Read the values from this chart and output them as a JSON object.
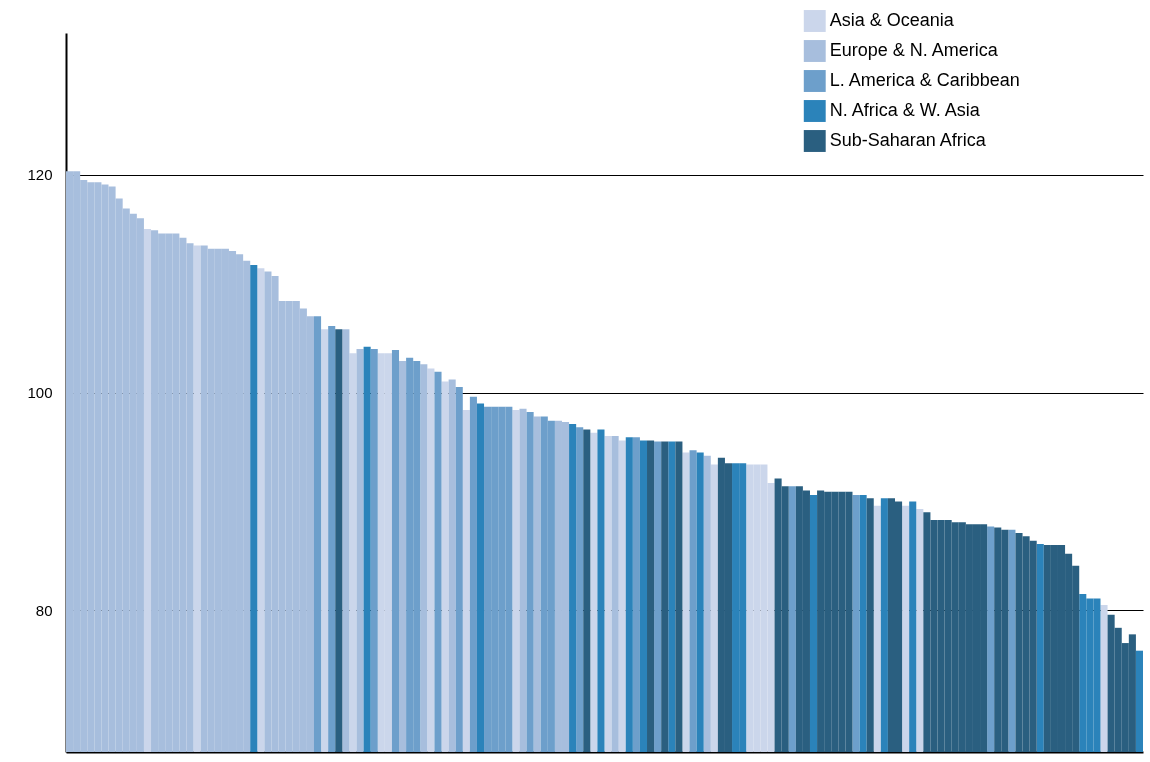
{
  "chart_data": {
    "type": "bar",
    "categories": [
      null,
      null,
      null,
      null,
      null,
      null,
      null,
      null,
      null,
      null,
      null,
      null,
      null,
      null,
      null,
      null,
      null,
      null,
      null,
      null,
      null,
      null,
      null,
      null,
      null,
      null,
      null,
      null,
      null,
      null,
      null,
      null,
      null,
      null,
      null,
      null,
      null,
      null,
      null,
      null,
      null,
      null,
      null,
      null,
      null,
      null,
      null,
      null,
      null,
      null,
      null,
      null,
      null,
      null,
      null,
      null,
      null,
      null,
      null,
      null,
      null,
      null,
      null,
      null,
      null,
      null,
      null,
      null,
      null,
      null,
      null,
      null,
      null,
      null,
      null,
      null,
      null,
      null,
      null,
      null,
      null,
      null,
      null,
      null,
      null,
      null,
      null,
      null,
      null,
      null,
      null,
      null,
      null,
      null,
      null,
      null,
      null,
      null,
      null,
      null,
      null,
      null,
      null,
      null,
      null,
      null,
      null,
      null,
      null,
      null,
      null,
      null,
      null,
      null,
      null,
      null,
      null,
      null,
      null,
      null,
      null,
      null,
      null,
      null,
      null,
      null,
      null,
      null,
      null,
      null,
      null,
      null,
      null,
      null,
      null,
      null,
      null,
      null,
      null,
      null,
      null,
      null,
      null,
      null,
      null,
      null,
      null,
      null,
      null,
      null,
      null,
      null
    ],
    "series": [
      {
        "name": "Asia & Oceania",
        "color": "#cbd6eb",
        "values": [
          null,
          null,
          null,
          null,
          null,
          null,
          null,
          null,
          null,
          null,
          null,
          115.0,
          null,
          null,
          null,
          null,
          null,
          null,
          113.5,
          null,
          null,
          null,
          null,
          null,
          null,
          null,
          null,
          111.4,
          null,
          null,
          null,
          null,
          null,
          null,
          null,
          null,
          105.8,
          null,
          null,
          null,
          103.6,
          null,
          null,
          null,
          103.6,
          103.6,
          null,
          null,
          null,
          null,
          null,
          102.2,
          null,
          101.0,
          null,
          null,
          98.4,
          null,
          null,
          null,
          null,
          null,
          null,
          98.4,
          null,
          null,
          null,
          null,
          null,
          null,
          null,
          null,
          null,
          null,
          96.3,
          null,
          96.0,
          null,
          95.6,
          null,
          null,
          null,
          null,
          null,
          null,
          null,
          null,
          94.5,
          null,
          null,
          null,
          93.4,
          null,
          null,
          null,
          null,
          93.4,
          93.4,
          93.4,
          91.7,
          null,
          null,
          null,
          null,
          null,
          null,
          null,
          null,
          null,
          null,
          null,
          null,
          null,
          null,
          89.6,
          null,
          null,
          null,
          89.6,
          null,
          89.3,
          null,
          null,
          null,
          null,
          null,
          null,
          null,
          null,
          null,
          null,
          null,
          null,
          null,
          null,
          null,
          null,
          null,
          null,
          null,
          null,
          null,
          null,
          null,
          null,
          null,
          80.5,
          null,
          null,
          null,
          null,
          null
        ]
      },
      {
        "name": "Europe & N. America",
        "color": "#a7bedd",
        "values": [
          120.3,
          120.3,
          119.5,
          119.3,
          119.3,
          119.1,
          118.9,
          117.8,
          116.9,
          116.4,
          116.0,
          null,
          114.9,
          114.6,
          114.6,
          114.6,
          114.2,
          113.7,
          null,
          113.5,
          113.2,
          113.2,
          113.2,
          113.0,
          112.7,
          112.1,
          null,
          null,
          111.1,
          110.7,
          108.4,
          108.4,
          108.4,
          107.7,
          107.0,
          null,
          null,
          null,
          null,
          105.8,
          null,
          104.0,
          null,
          null,
          null,
          null,
          null,
          102.9,
          null,
          null,
          102.6,
          null,
          null,
          null,
          101.2,
          null,
          null,
          null,
          null,
          null,
          null,
          null,
          null,
          null,
          98.5,
          null,
          97.8,
          null,
          null,
          97.4,
          97.3,
          null,
          null,
          null,
          null,
          null,
          null,
          96.0,
          null,
          null,
          null,
          null,
          null,
          null,
          null,
          null,
          null,
          null,
          null,
          null,
          94.2,
          null,
          null,
          null,
          null,
          null,
          null,
          null,
          null,
          null,
          null,
          null,
          null,
          null,
          null,
          null,
          null,
          null,
          null,
          null,
          null,
          null,
          null,
          null,
          null,
          null,
          null,
          null,
          null,
          null,
          null,
          null,
          null,
          null,
          null,
          null,
          null,
          null,
          null,
          null,
          null,
          null,
          null,
          null,
          null,
          null,
          null,
          null,
          null,
          null,
          null,
          null,
          null,
          null,
          null,
          null,
          null,
          null,
          null,
          null,
          null,
          null
        ]
      },
      {
        "name": "L. America & Caribbean",
        "color": "#6d9fcb",
        "values": [
          null,
          null,
          null,
          null,
          null,
          null,
          null,
          null,
          null,
          null,
          null,
          null,
          null,
          null,
          null,
          null,
          null,
          null,
          null,
          null,
          null,
          null,
          null,
          null,
          null,
          null,
          null,
          null,
          null,
          null,
          null,
          null,
          null,
          null,
          null,
          107.0,
          null,
          106.1,
          null,
          null,
          null,
          null,
          null,
          104.0,
          null,
          null,
          103.9,
          null,
          103.2,
          102.9,
          null,
          null,
          101.9,
          null,
          null,
          100.5,
          null,
          99.6,
          null,
          98.7,
          98.7,
          98.7,
          98.7,
          null,
          null,
          98.2,
          null,
          97.8,
          97.4,
          null,
          null,
          null,
          96.8,
          null,
          null,
          null,
          null,
          null,
          null,
          null,
          95.9,
          null,
          null,
          95.5,
          null,
          null,
          null,
          null,
          94.7,
          null,
          null,
          null,
          null,
          null,
          null,
          null,
          null,
          null,
          null,
          null,
          null,
          null,
          91.4,
          null,
          null,
          null,
          null,
          null,
          null,
          null,
          null,
          90.6,
          null,
          null,
          null,
          null,
          null,
          null,
          null,
          null,
          null,
          null,
          null,
          null,
          null,
          null,
          null,
          null,
          null,
          null,
          87.7,
          null,
          null,
          87.4,
          null,
          null,
          null,
          null,
          null,
          null,
          null,
          null,
          null,
          null,
          null,
          null,
          null,
          null,
          null,
          null,
          null,
          null
        ]
      },
      {
        "name": "N. Africa & W. Asia",
        "color": "#2b83ba",
        "values": [
          null,
          null,
          null,
          null,
          null,
          null,
          null,
          null,
          null,
          null,
          null,
          null,
          null,
          null,
          null,
          null,
          null,
          null,
          null,
          null,
          null,
          null,
          null,
          null,
          null,
          null,
          111.7,
          null,
          null,
          null,
          null,
          null,
          null,
          null,
          null,
          null,
          null,
          null,
          null,
          null,
          null,
          null,
          104.2,
          null,
          null,
          null,
          null,
          null,
          null,
          null,
          null,
          null,
          null,
          null,
          null,
          null,
          null,
          null,
          99.0,
          null,
          null,
          null,
          null,
          null,
          null,
          null,
          null,
          null,
          null,
          null,
          null,
          97.1,
          null,
          null,
          null,
          96.6,
          null,
          null,
          null,
          95.9,
          null,
          95.6,
          null,
          null,
          null,
          95.5,
          null,
          null,
          null,
          94.5,
          null,
          null,
          null,
          null,
          93.5,
          93.5,
          null,
          null,
          null,
          null,
          null,
          null,
          null,
          null,
          null,
          90.6,
          null,
          null,
          null,
          null,
          null,
          null,
          90.6,
          null,
          null,
          90.3,
          null,
          null,
          null,
          90.0,
          null,
          null,
          null,
          null,
          null,
          null,
          null,
          null,
          null,
          null,
          null,
          null,
          null,
          null,
          null,
          null,
          null,
          86.1,
          null,
          null,
          null,
          null,
          null,
          81.5,
          81.1,
          81.1,
          null,
          null,
          null,
          null,
          null,
          76.3
        ]
      },
      {
        "name": "Sub-Saharan Africa",
        "color": "#2a5f80",
        "values": [
          null,
          null,
          null,
          null,
          null,
          null,
          null,
          null,
          null,
          null,
          null,
          null,
          null,
          null,
          null,
          null,
          null,
          null,
          null,
          null,
          null,
          null,
          null,
          null,
          null,
          null,
          null,
          null,
          null,
          null,
          null,
          null,
          null,
          null,
          null,
          null,
          null,
          null,
          105.8,
          null,
          null,
          null,
          null,
          null,
          null,
          null,
          null,
          null,
          null,
          null,
          null,
          null,
          null,
          null,
          null,
          null,
          null,
          null,
          null,
          null,
          null,
          null,
          null,
          null,
          null,
          null,
          null,
          null,
          null,
          null,
          null,
          null,
          null,
          96.6,
          null,
          null,
          null,
          null,
          null,
          null,
          null,
          null,
          95.6,
          null,
          95.5,
          null,
          95.5,
          null,
          null,
          null,
          null,
          null,
          94.0,
          93.5,
          null,
          null,
          null,
          null,
          null,
          null,
          92.1,
          91.4,
          null,
          91.4,
          91.0,
          null,
          91.0,
          90.9,
          90.9,
          90.9,
          90.9,
          null,
          null,
          90.3,
          null,
          null,
          90.3,
          90.0,
          null,
          null,
          null,
          89.0,
          88.3,
          88.3,
          88.3,
          88.1,
          88.1,
          87.9,
          87.9,
          87.9,
          null,
          87.6,
          87.4,
          null,
          87.1,
          86.8,
          86.4,
          null,
          86.0,
          86.0,
          86.0,
          85.2,
          84.1,
          null,
          null,
          null,
          null,
          79.6,
          78.4,
          77.0,
          77.8,
          null
        ]
      }
    ],
    "ylim": [
      67,
      133
    ],
    "yticks": [
      80,
      100,
      120
    ],
    "grid": "y",
    "legend": "top right"
  }
}
